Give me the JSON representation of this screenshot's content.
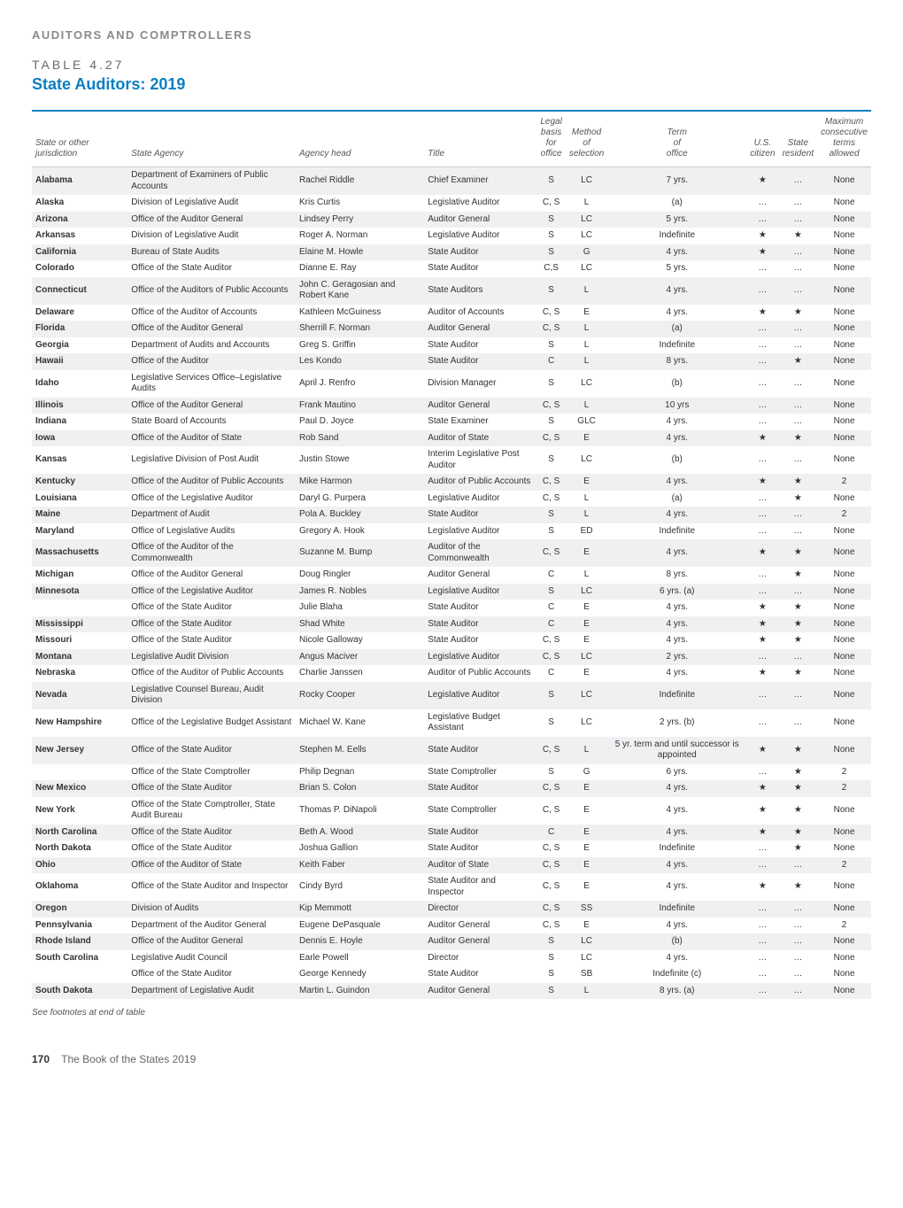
{
  "section_label": "AUDITORS AND COMPTROLLERS",
  "table_number": "TABLE 4.27",
  "table_title": "State Auditors: 2019",
  "columns": [
    "State or other jurisdiction",
    "State Agency",
    "Agency head",
    "Title",
    "Legal basis for office",
    "Method of selection",
    "Term of office",
    "U.S. citizen",
    "State resident",
    "Maximum consecutive terms allowed"
  ],
  "col_align": [
    "left",
    "left",
    "left",
    "left",
    "center",
    "center",
    "center",
    "center",
    "center",
    "center"
  ],
  "rows": [
    {
      "shade": true,
      "cells": [
        "Alabama",
        "Department of Examiners of Public Accounts",
        "Rachel Riddle",
        "Chief Examiner",
        "S",
        "LC",
        "7 yrs.",
        "★",
        "…",
        "None"
      ]
    },
    {
      "shade": false,
      "cells": [
        "Alaska",
        "Division of Legislative Audit",
        "Kris Curtis",
        "Legislative Auditor",
        "C, S",
        "L",
        "(a)",
        "…",
        "…",
        "None"
      ]
    },
    {
      "shade": true,
      "cells": [
        "Arizona",
        "Office of the Auditor General",
        "Lindsey Perry",
        "Auditor General",
        "S",
        "LC",
        "5 yrs.",
        "…",
        "…",
        "None"
      ]
    },
    {
      "shade": false,
      "cells": [
        "Arkansas",
        "Division of Legislative Audit",
        "Roger A. Norman",
        "Legislative Auditor",
        "S",
        "LC",
        "Indefinite",
        "★",
        "★",
        "None"
      ]
    },
    {
      "shade": true,
      "cells": [
        "California",
        "Bureau of State Audits",
        "Elaine M. Howle",
        "State Auditor",
        "S",
        "G",
        "4 yrs.",
        "★",
        "…",
        "None"
      ]
    },
    {
      "shade": false,
      "cells": [
        "Colorado",
        "Office of the State Auditor",
        "Dianne E. Ray",
        "State Auditor",
        "C,S",
        "LC",
        "5 yrs.",
        "…",
        "…",
        "None"
      ]
    },
    {
      "shade": true,
      "cells": [
        "Connecticut",
        "Office of the Auditors of Public Accounts",
        "John C. Geragosian and Robert Kane",
        "State Auditors",
        "S",
        "L",
        "4 yrs.",
        "…",
        "…",
        "None"
      ]
    },
    {
      "shade": false,
      "cells": [
        "Delaware",
        "Office of the Auditor of Accounts",
        "Kathleen McGuiness",
        "Auditor of Accounts",
        "C, S",
        "E",
        "4 yrs.",
        "★",
        "★",
        "None"
      ]
    },
    {
      "shade": true,
      "cells": [
        "Florida",
        "Office of the Auditor General",
        "Sherrill F. Norman",
        "Auditor General",
        "C, S",
        "L",
        "(a)",
        "…",
        "…",
        "None"
      ]
    },
    {
      "shade": false,
      "cells": [
        "Georgia",
        "Department of Audits and Accounts",
        "Greg S. Griffin",
        "State Auditor",
        "S",
        "L",
        "Indefinite",
        "…",
        "…",
        "None"
      ]
    },
    {
      "shade": true,
      "cells": [
        "Hawaii",
        "Office of the Auditor",
        "Les Kondo",
        "State Auditor",
        "C",
        "L",
        "8 yrs.",
        "…",
        "★",
        "None"
      ]
    },
    {
      "shade": false,
      "cells": [
        "Idaho",
        "Legislative Services Office–Legislative Audits",
        "April J. Renfro",
        "Division Manager",
        "S",
        "LC",
        "(b)",
        "…",
        "…",
        "None"
      ]
    },
    {
      "shade": true,
      "cells": [
        "Illinois",
        "Office of the Auditor General",
        "Frank Mautino",
        "Auditor General",
        "C, S",
        "L",
        "10 yrs",
        "…",
        "…",
        "None"
      ]
    },
    {
      "shade": false,
      "cells": [
        "Indiana",
        "State Board of Accounts",
        "Paul D. Joyce",
        "State Examiner",
        "S",
        "GLC",
        "4 yrs.",
        "…",
        "…",
        "None"
      ]
    },
    {
      "shade": true,
      "cells": [
        "Iowa",
        "Office of the Auditor of State",
        "Rob Sand",
        "Auditor of State",
        "C, S",
        "E",
        "4 yrs.",
        "★",
        "★",
        "None"
      ]
    },
    {
      "shade": false,
      "cells": [
        "Kansas",
        "Legislative Division of Post Audit",
        "Justin Stowe",
        "Interim Legislative Post Auditor",
        "S",
        "LC",
        "(b)",
        "…",
        "…",
        "None"
      ]
    },
    {
      "shade": true,
      "cells": [
        "Kentucky",
        "Office of the Auditor of Public Accounts",
        "Mike Harmon",
        "Auditor of Public Accounts",
        "C, S",
        "E",
        "4 yrs.",
        "★",
        "★",
        "2"
      ]
    },
    {
      "shade": false,
      "cells": [
        "Louisiana",
        "Office of the Legislative Auditor",
        "Daryl G. Purpera",
        "Legislative Auditor",
        "C, S",
        "L",
        "(a)",
        "…",
        "★",
        "None"
      ]
    },
    {
      "shade": true,
      "cells": [
        "Maine",
        "Department of Audit",
        "Pola A. Buckley",
        "State Auditor",
        "S",
        "L",
        "4 yrs.",
        "…",
        "…",
        "2"
      ]
    },
    {
      "shade": false,
      "cells": [
        "Maryland",
        "Office of Legislative Audits",
        "Gregory A. Hook",
        "Legislative Auditor",
        "S",
        "ED",
        "Indefinite",
        "…",
        "…",
        "None"
      ]
    },
    {
      "shade": true,
      "cells": [
        "Massachusetts",
        "Office of the Auditor of the Commonwealth",
        "Suzanne M. Bump",
        "Auditor of the Commonwealth",
        "C, S",
        "E",
        "4 yrs.",
        "★",
        "★",
        "None"
      ]
    },
    {
      "shade": false,
      "cells": [
        "Michigan",
        "Office of the Auditor General",
        "Doug Ringler",
        "Auditor General",
        "C",
        "L",
        "8 yrs.",
        "…",
        "★",
        "None"
      ]
    },
    {
      "shade": true,
      "cells": [
        "Minnesota",
        "Office of the Legislative Auditor",
        "James R. Nobles",
        "Legislative Auditor",
        "S",
        "LC",
        "6 yrs. (a)",
        "…",
        "…",
        "None"
      ]
    },
    {
      "shade": false,
      "cells": [
        "",
        "Office of the State Auditor",
        "Julie Blaha",
        "State Auditor",
        "C",
        "E",
        "4 yrs.",
        "★",
        "★",
        "None"
      ]
    },
    {
      "shade": true,
      "cells": [
        "Mississippi",
        "Office of the State Auditor",
        "Shad White",
        "State Auditor",
        "C",
        "E",
        "4 yrs.",
        "★",
        "★",
        "None"
      ]
    },
    {
      "shade": false,
      "cells": [
        "Missouri",
        "Office of the State Auditor",
        "Nicole Galloway",
        "State Auditor",
        "C, S",
        "E",
        "4 yrs.",
        "★",
        "★",
        "None"
      ]
    },
    {
      "shade": true,
      "cells": [
        "Montana",
        "Legislative Audit Division",
        "Angus Maciver",
        "Legislative Auditor",
        "C, S",
        "LC",
        "2 yrs.",
        "…",
        "…",
        "None"
      ]
    },
    {
      "shade": false,
      "cells": [
        "Nebraska",
        "Office of the Auditor of Public Accounts",
        "Charlie Janssen",
        "Auditor of Public Accounts",
        "C",
        "E",
        "4 yrs.",
        "★",
        "★",
        "None"
      ]
    },
    {
      "shade": true,
      "cells": [
        "Nevada",
        "Legislative Counsel Bureau, Audit Division",
        "Rocky Cooper",
        "Legislative Auditor",
        "S",
        "LC",
        "Indefinite",
        "…",
        "…",
        "None"
      ]
    },
    {
      "shade": false,
      "cells": [
        "New Hampshire",
        "Office of the Legislative Budget Assistant",
        "Michael W. Kane",
        "Legislative Budget Assistant",
        "S",
        "LC",
        "2 yrs. (b)",
        "…",
        "…",
        "None"
      ]
    },
    {
      "shade": true,
      "cells": [
        "New Jersey",
        "Office of the State Auditor",
        "Stephen M. Eells",
        "State Auditor",
        "C, S",
        "L",
        "5 yr. term and until successor is appointed",
        "★",
        "★",
        "None"
      ]
    },
    {
      "shade": false,
      "cells": [
        "",
        "Office of the State Comptroller",
        "Philip Degnan",
        "State Comptroller",
        "S",
        "G",
        "6 yrs.",
        "…",
        "★",
        "2"
      ]
    },
    {
      "shade": true,
      "cells": [
        "New Mexico",
        "Office of the State Auditor",
        "Brian S. Colon",
        "State Auditor",
        "C, S",
        "E",
        "4 yrs.",
        "★",
        "★",
        "2"
      ]
    },
    {
      "shade": false,
      "cells": [
        "New York",
        "Office of the State Comptroller, State Audit Bureau",
        "Thomas P. DiNapoli",
        "State Comptroller",
        "C, S",
        "E",
        "4 yrs.",
        "★",
        "★",
        "None"
      ]
    },
    {
      "shade": true,
      "cells": [
        "North Carolina",
        "Office of the State Auditor",
        "Beth A. Wood",
        "State Auditor",
        "C",
        "E",
        "4 yrs.",
        "★",
        "★",
        "None"
      ]
    },
    {
      "shade": false,
      "cells": [
        "North Dakota",
        "Office of the State Auditor",
        "Joshua Gallion",
        "State Auditor",
        "C, S",
        "E",
        "Indefinite",
        "…",
        "★",
        "None"
      ]
    },
    {
      "shade": true,
      "cells": [
        "Ohio",
        "Office of the Auditor of State",
        "Keith Faber",
        "Auditor of State",
        "C, S",
        "E",
        "4 yrs.",
        "…",
        "…",
        "2"
      ]
    },
    {
      "shade": false,
      "cells": [
        "Oklahoma",
        "Office of the State Auditor and Inspector",
        "Cindy Byrd",
        "State Auditor and Inspector",
        "C, S",
        "E",
        "4 yrs.",
        "★",
        "★",
        "None"
      ]
    },
    {
      "shade": true,
      "cells": [
        "Oregon",
        "Division of Audits",
        "Kip Memmott",
        "Director",
        "C, S",
        "SS",
        "Indefinite",
        "…",
        "…",
        "None"
      ]
    },
    {
      "shade": false,
      "cells": [
        "Pennsylvania",
        "Department of the Auditor General",
        "Eugene DePasquale",
        "Auditor General",
        "C, S",
        "E",
        "4 yrs.",
        "…",
        "…",
        "2"
      ]
    },
    {
      "shade": true,
      "cells": [
        "Rhode Island",
        "Office of the Auditor General",
        "Dennis E. Hoyle",
        "Auditor General",
        "S",
        "LC",
        "(b)",
        "…",
        "…",
        "None"
      ]
    },
    {
      "shade": false,
      "cells": [
        "South Carolina",
        "Legislative Audit Council",
        "Earle Powell",
        "Director",
        "S",
        "LC",
        "4 yrs.",
        "…",
        "…",
        "None"
      ]
    },
    {
      "shade": false,
      "cells": [
        "",
        "Office of the State Auditor",
        "George Kennedy",
        "State Auditor",
        "S",
        "SB",
        "Indefinite (c)",
        "…",
        "…",
        "None"
      ]
    },
    {
      "shade": true,
      "cells": [
        "South Dakota",
        "Department of Legislative Audit",
        "Martin L. Guindon",
        "Auditor General",
        "S",
        "L",
        "8 yrs. (a)",
        "…",
        "…",
        "None"
      ]
    }
  ],
  "footnote": "See footnotes at end of table",
  "page_number": "170",
  "book_title": "The Book of the States 2019",
  "colors": {
    "accent": "#0b7fc2",
    "shade_bg": "#eef0f2",
    "label_gray": "#8a8a8a",
    "text": "#333333"
  }
}
